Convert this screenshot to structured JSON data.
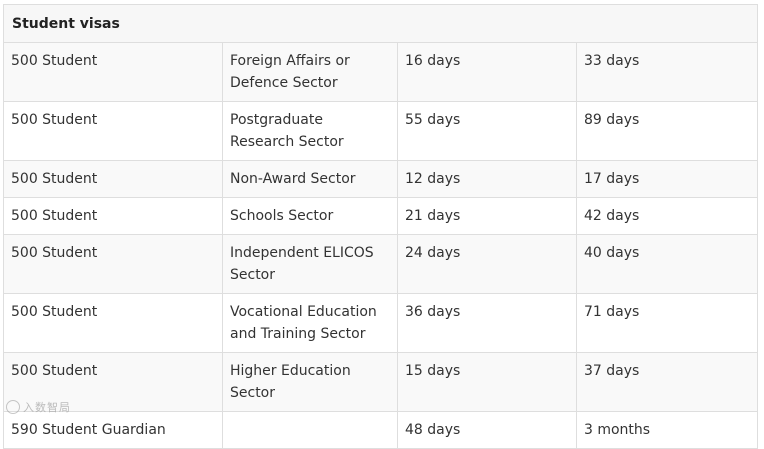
{
  "table": {
    "section_title": "Student visas",
    "rows": [
      [
        "500 Student",
        "Foreign Affairs or Defence Sector",
        "16 days",
        "33 days"
      ],
      [
        "500 Student",
        "Postgraduate Research Sector",
        "55 days",
        "89 days"
      ],
      [
        "500 Student",
        "Non-Award Sector",
        "12 days",
        "17 days"
      ],
      [
        "500 Student",
        "Schools Sector",
        "21 days",
        "42 days"
      ],
      [
        "500 Student",
        "Independent ELICOS Sector",
        "24 days",
        "40 days"
      ],
      [
        "500 Student",
        "Vocational Education and Training Sector",
        "36 days",
        "71 days"
      ],
      [
        "500 Student",
        "Higher Education Sector",
        "15 days",
        "37 days"
      ],
      [
        "590 Student Guardian",
        "",
        "48 days",
        "3 months"
      ]
    ]
  },
  "watermark": {
    "text": "入数智局",
    "icon": "wechat-logo-icon"
  }
}
